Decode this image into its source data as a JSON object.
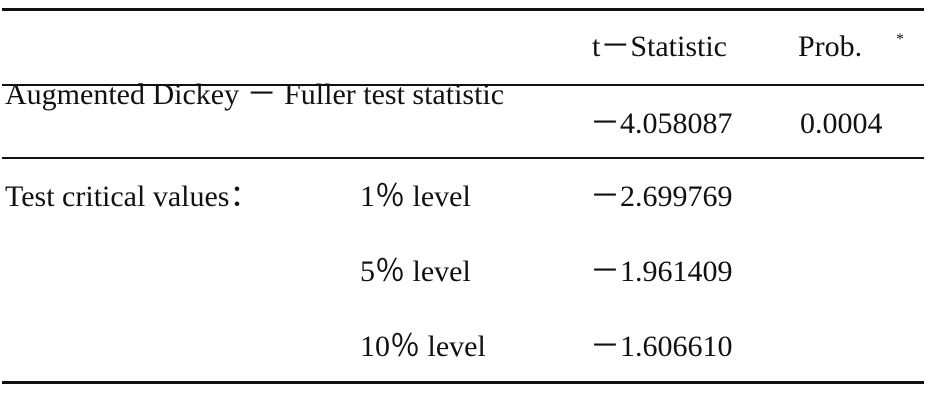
{
  "table": {
    "header": {
      "t_statistic": "t－Statistic",
      "prob": "Prob.",
      "prob_note": "*"
    },
    "rows": [
      {
        "label": "Augmented Dickey － Fuller test statistic",
        "t": "－4.058087",
        "p": "0.0004"
      },
      {
        "label": "Test critical values：",
        "level": "1％ level",
        "t": "－2.699769"
      },
      {
        "level": "5％ level",
        "t": "－1.961409"
      },
      {
        "level": "10％ level",
        "t": "－1.606610"
      }
    ]
  }
}
